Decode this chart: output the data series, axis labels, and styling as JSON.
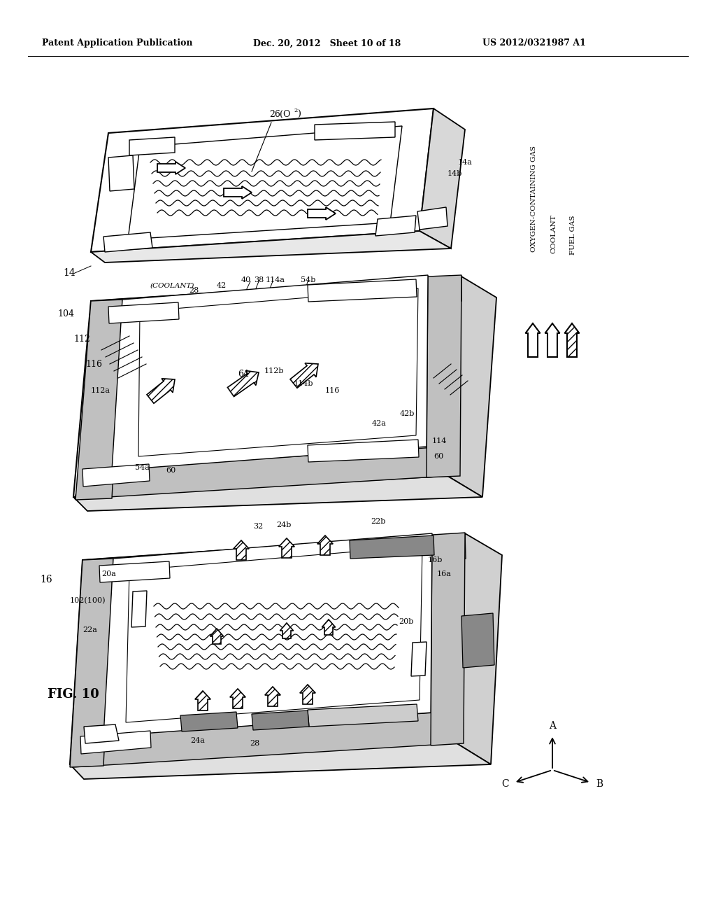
{
  "background_color": "#ffffff",
  "header_left": "Patent Application Publication",
  "header_center": "Dec. 20, 2012   Sheet 10 of 18",
  "header_right": "US 2012/0321987 A1",
  "fig_label": "FIG. 10"
}
